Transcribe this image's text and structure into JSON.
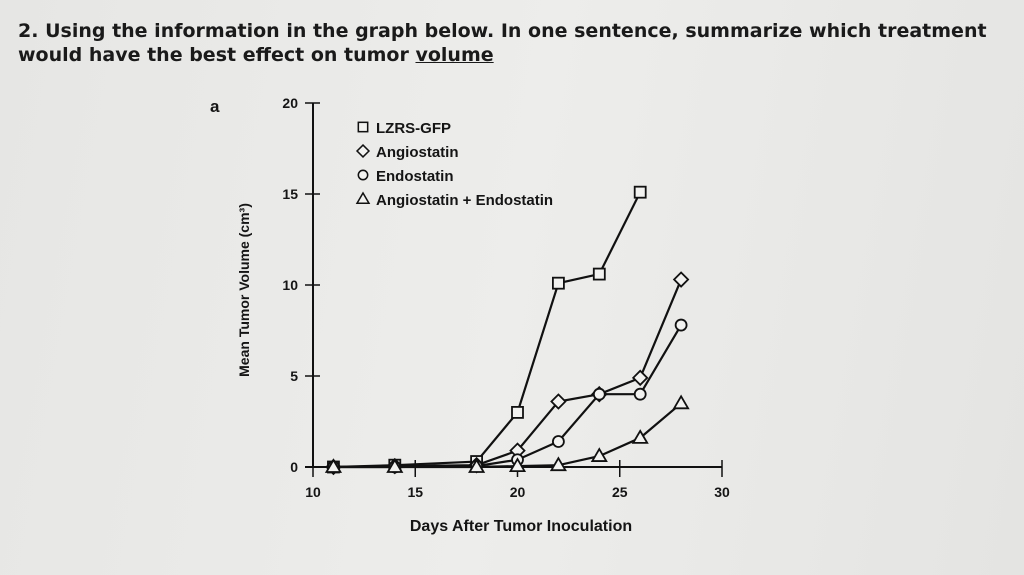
{
  "question": {
    "number": "2.",
    "text": "Using the information in the graph below. In one sentence, summarize which treatment would have the best effect on tumor",
    "underlined": "volume"
  },
  "chart_data": {
    "type": "line",
    "panel_label": "a",
    "xlabel": "Days After Tumor Inoculation",
    "ylabel": "Mean Tumor Volume (cm³)",
    "xlim": [
      10,
      30
    ],
    "ylim": [
      0,
      20
    ],
    "xticks": [
      10,
      15,
      20,
      25,
      30
    ],
    "yticks": [
      0,
      5,
      10,
      15,
      20
    ],
    "grid": false,
    "legend_position": "top-left",
    "series": [
      {
        "name": "LZRS-GFP",
        "marker": "square",
        "x": [
          11,
          14,
          18,
          20,
          22,
          24,
          26
        ],
        "y": [
          0,
          0.1,
          0.3,
          3.0,
          10.1,
          10.6,
          15.1
        ]
      },
      {
        "name": "Angiostatin",
        "marker": "diamond",
        "x": [
          11,
          14,
          18,
          20,
          22,
          24,
          26,
          28
        ],
        "y": [
          0,
          0.05,
          0.1,
          0.9,
          3.6,
          4.0,
          4.9,
          10.3
        ]
      },
      {
        "name": "Endostatin",
        "marker": "circle",
        "x": [
          11,
          14,
          18,
          20,
          22,
          24,
          26,
          28
        ],
        "y": [
          0,
          0,
          0.05,
          0.4,
          1.4,
          4.0,
          4.0,
          7.8
        ]
      },
      {
        "name": "Angiostatin + Endostatin",
        "marker": "triangle",
        "x": [
          11,
          14,
          18,
          20,
          22,
          24,
          26,
          28
        ],
        "y": [
          0,
          0,
          0,
          0.05,
          0.1,
          0.6,
          1.6,
          3.5
        ]
      }
    ]
  }
}
